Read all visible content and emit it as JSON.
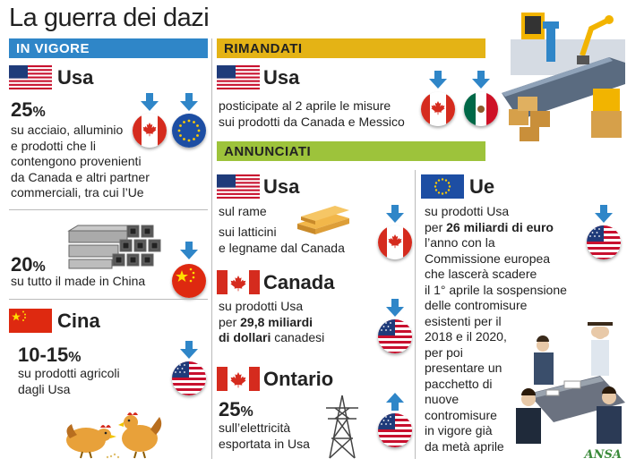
{
  "title": "La guerra dei dazi",
  "sections": {
    "in_vigore": "IN VIGORE",
    "rimandati": "RIMANDATI",
    "annunciati": "ANNUNCIATI"
  },
  "in_vigore": {
    "usa": {
      "heading": "Usa",
      "pct_num": "25",
      "pct_sign": "%",
      "text": [
        "su acciaio, alluminio",
        "e prodotti che li",
        "contengono provenienti",
        "da Canada e altri partner",
        "commerciali, tra cui l’Ue"
      ]
    },
    "china_tariff": {
      "pct_num": "20",
      "pct_sign": "%",
      "text": "su tutto il made in China"
    },
    "cina": {
      "heading": "Cina",
      "pct_num": "10-15",
      "pct_sign": "%",
      "text": [
        "su prodotti agricoli",
        "dagli Usa"
      ]
    }
  },
  "rimandati": {
    "heading": "Usa",
    "text": [
      "posticipate al 2 aprile le misure",
      "sui prodotti da Canada e Messico"
    ]
  },
  "annunciati": {
    "usa": {
      "heading": "Usa",
      "line1": "sul rame",
      "line2": [
        "sui latticini",
        "e legname dal Canada"
      ]
    },
    "canada": {
      "heading": "Canada",
      "line1": "su prodotti Usa",
      "line2_pre": "per ",
      "line2_bold": "29,8 miliardi",
      "line3_bold": "di dollari",
      "line3_post": " canadesi"
    },
    "ontario": {
      "heading": "Ontario",
      "pct_num": "25",
      "pct_sign": "%",
      "text": [
        "sull’elettricità",
        "esportata in Usa"
      ]
    },
    "ue": {
      "heading": "Ue",
      "line1": "su prodotti Usa",
      "line2_pre": "per ",
      "line2_bold": "26 miliardi di euro",
      "rest": [
        "l’anno con la",
        "Commissione europea",
        "che lascerà scadere",
        "il 1° aprile la sospensione",
        "delle contromisure",
        "esistenti per il",
        "2018 e il 2020,",
        "per poi",
        "presentare un",
        "pacchetto di",
        "nuove",
        "contromisure",
        "in vigore già",
        "da metà aprile"
      ]
    }
  },
  "credit": "ANSA",
  "colors": {
    "blue_band": "#2f86c8",
    "gold_band": "#e4b315",
    "green_band": "#9dc33b",
    "arrow": "#2f86c8"
  }
}
